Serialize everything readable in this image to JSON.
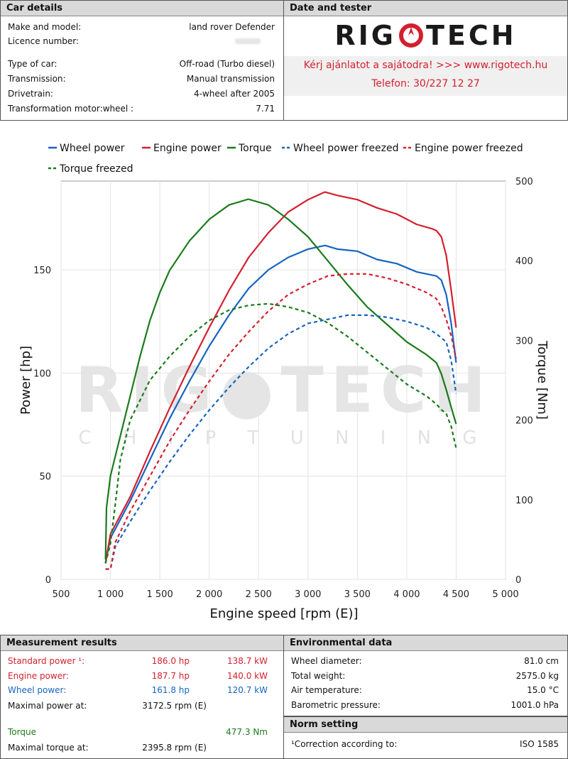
{
  "car_details": {
    "header": "Car details",
    "rows": [
      {
        "label": "Make and model:",
        "value": "land rover Defender"
      },
      {
        "label": "Licence number:",
        "value": ""
      },
      {
        "label": "Type of car:",
        "value": "Off-road (Turbo diesel)"
      },
      {
        "label": "Transmission:",
        "value": "Manual transmission"
      },
      {
        "label": "Drivetrain:",
        "value": "4-wheel after 2005"
      },
      {
        "label": "Transformation motor:wheel :",
        "value": "7.71"
      }
    ]
  },
  "date_tester": {
    "header": "Date and tester",
    "logo_left": "RIG",
    "logo_right": "TECH",
    "promo_line1": "Kérj ajánlatot a sajátodra!  >>>  www.rigotech.hu",
    "promo_line2": "Telefon: 30/227 12 27"
  },
  "watermark": {
    "left": "RIG",
    "right": "TECH",
    "sub": "C H I P T U N I N G"
  },
  "colors": {
    "wheel": "#1565c0",
    "engine": "#d3202e",
    "torque": "#1b7a1b"
  },
  "chart_data": {
    "type": "line",
    "xlabel": "Engine speed [rpm (E)]",
    "ylabel": "Power [hp]",
    "y2label": "Torque [Nm]",
    "xlim": [
      500,
      5000
    ],
    "ylim": [
      0,
      193
    ],
    "y2lim": [
      0,
      500
    ],
    "x_ticks": [
      500,
      1000,
      1500,
      2000,
      2500,
      3000,
      3500,
      4000,
      4500,
      5000
    ],
    "x_tick_labels": [
      "500",
      "1 000",
      "1 500",
      "2 000",
      "2 500",
      "3 000",
      "3 500",
      "4 000",
      "4 500",
      "5 000"
    ],
    "y_ticks": [
      0,
      50,
      100,
      150
    ],
    "y_tick_labels": [
      "0",
      "50",
      "100",
      "150"
    ],
    "y2_ticks": [
      0,
      100,
      200,
      300,
      400,
      500
    ],
    "y2_tick_labels": [
      "0",
      "100",
      "200",
      "300",
      "400",
      "500"
    ],
    "grid": true,
    "legend_position": "top",
    "series": [
      {
        "name": "Wheel power",
        "axis": "left",
        "color": "#1565c0",
        "dash": false,
        "points": [
          [
            950,
            8
          ],
          [
            1000,
            20
          ],
          [
            1200,
            38
          ],
          [
            1400,
            58
          ],
          [
            1600,
            78
          ],
          [
            1800,
            96
          ],
          [
            2000,
            113
          ],
          [
            2200,
            128
          ],
          [
            2400,
            141
          ],
          [
            2600,
            150
          ],
          [
            2800,
            156
          ],
          [
            3000,
            160
          ],
          [
            3172,
            161.8
          ],
          [
            3300,
            160
          ],
          [
            3500,
            159
          ],
          [
            3700,
            155
          ],
          [
            3900,
            153
          ],
          [
            4100,
            149
          ],
          [
            4200,
            148
          ],
          [
            4300,
            147
          ],
          [
            4350,
            145
          ],
          [
            4400,
            138
          ],
          [
            4450,
            124
          ],
          [
            4500,
            105
          ]
        ]
      },
      {
        "name": "Engine power",
        "axis": "left",
        "color": "#d3202e",
        "dash": false,
        "points": [
          [
            950,
            8
          ],
          [
            1000,
            22
          ],
          [
            1200,
            40
          ],
          [
            1400,
            62
          ],
          [
            1600,
            83
          ],
          [
            1800,
            103
          ],
          [
            2000,
            122
          ],
          [
            2200,
            140
          ],
          [
            2400,
            156
          ],
          [
            2600,
            168
          ],
          [
            2800,
            178
          ],
          [
            3000,
            184
          ],
          [
            3172,
            187.7
          ],
          [
            3300,
            186
          ],
          [
            3500,
            184
          ],
          [
            3700,
            180
          ],
          [
            3900,
            177
          ],
          [
            4100,
            172
          ],
          [
            4250,
            170
          ],
          [
            4300,
            169
          ],
          [
            4350,
            166
          ],
          [
            4400,
            157
          ],
          [
            4450,
            140
          ],
          [
            4500,
            122
          ]
        ]
      },
      {
        "name": "Torque",
        "axis": "right",
        "color": "#1b7a1b",
        "dash": false,
        "points": [
          [
            950,
            25
          ],
          [
            960,
            90
          ],
          [
            1000,
            130
          ],
          [
            1100,
            180
          ],
          [
            1200,
            230
          ],
          [
            1300,
            280
          ],
          [
            1400,
            325
          ],
          [
            1500,
            360
          ],
          [
            1600,
            388
          ],
          [
            1800,
            425
          ],
          [
            2000,
            452
          ],
          [
            2200,
            470
          ],
          [
            2396,
            477.3
          ],
          [
            2600,
            470
          ],
          [
            2800,
            452
          ],
          [
            3000,
            430
          ],
          [
            3200,
            400
          ],
          [
            3400,
            370
          ],
          [
            3600,
            342
          ],
          [
            3800,
            320
          ],
          [
            4000,
            298
          ],
          [
            4200,
            282
          ],
          [
            4300,
            272
          ],
          [
            4350,
            258
          ],
          [
            4400,
            238
          ],
          [
            4450,
            216
          ],
          [
            4500,
            195
          ]
        ]
      },
      {
        "name": "Wheel power freezed",
        "axis": "left",
        "color": "#1565c0",
        "dash": true,
        "points": [
          [
            950,
            5
          ],
          [
            1000,
            5
          ],
          [
            1050,
            16
          ],
          [
            1200,
            28
          ],
          [
            1400,
            43
          ],
          [
            1600,
            57
          ],
          [
            1800,
            70
          ],
          [
            2000,
            82
          ],
          [
            2200,
            93
          ],
          [
            2400,
            103
          ],
          [
            2600,
            112
          ],
          [
            2800,
            119
          ],
          [
            3000,
            124
          ],
          [
            3200,
            126
          ],
          [
            3400,
            128
          ],
          [
            3600,
            128
          ],
          [
            3800,
            127
          ],
          [
            4000,
            125
          ],
          [
            4200,
            122
          ],
          [
            4300,
            119
          ],
          [
            4350,
            117
          ],
          [
            4400,
            115
          ],
          [
            4450,
            106
          ],
          [
            4500,
            90
          ]
        ]
      },
      {
        "name": "Engine power freezed",
        "axis": "left",
        "color": "#d3202e",
        "dash": true,
        "points": [
          [
            950,
            5
          ],
          [
            1000,
            5
          ],
          [
            1050,
            18
          ],
          [
            1200,
            33
          ],
          [
            1400,
            50
          ],
          [
            1600,
            67
          ],
          [
            1800,
            82
          ],
          [
            2000,
            96
          ],
          [
            2200,
            109
          ],
          [
            2400,
            120
          ],
          [
            2600,
            130
          ],
          [
            2800,
            138
          ],
          [
            3000,
            143
          ],
          [
            3200,
            147
          ],
          [
            3400,
            148
          ],
          [
            3600,
            148
          ],
          [
            3800,
            146
          ],
          [
            4000,
            143
          ],
          [
            4200,
            139
          ],
          [
            4300,
            136
          ],
          [
            4350,
            132
          ],
          [
            4400,
            126
          ],
          [
            4450,
            118
          ],
          [
            4500,
            107
          ]
        ]
      },
      {
        "name": "Torque freezed",
        "axis": "right",
        "color": "#1b7a1b",
        "dash": true,
        "points": [
          [
            950,
            20
          ],
          [
            1000,
            45
          ],
          [
            1050,
            95
          ],
          [
            1100,
            150
          ],
          [
            1200,
            200
          ],
          [
            1400,
            250
          ],
          [
            1600,
            280
          ],
          [
            1800,
            305
          ],
          [
            2000,
            325
          ],
          [
            2200,
            338
          ],
          [
            2400,
            344
          ],
          [
            2600,
            346
          ],
          [
            2800,
            342
          ],
          [
            3000,
            335
          ],
          [
            3200,
            322
          ],
          [
            3400,
            305
          ],
          [
            3600,
            285
          ],
          [
            3800,
            265
          ],
          [
            4000,
            245
          ],
          [
            4200,
            230
          ],
          [
            4300,
            220
          ],
          [
            4350,
            213
          ],
          [
            4400,
            208
          ],
          [
            4450,
            192
          ],
          [
            4500,
            165
          ]
        ]
      }
    ]
  },
  "measurement": {
    "header": "Measurement results",
    "rows": [
      {
        "label": "Standard power ¹:",
        "v1": "186.0 hp",
        "v2": "138.7 kW",
        "cls": "red"
      },
      {
        "label": "Engine power:",
        "v1": "187.7 hp",
        "v2": "140.0 kW",
        "cls": "red"
      },
      {
        "label": "Wheel power:",
        "v1": "161.8 hp",
        "v2": "120.7 kW",
        "cls": "blue"
      },
      {
        "label": "Maximal power at:",
        "v1": "3172.5 rpm (E)",
        "v2": "",
        "cls": ""
      }
    ],
    "torque_label": "Torque",
    "torque_value": "477.3 Nm",
    "max_torque_label": "Maximal torque at:",
    "max_torque_value": "2395.8 rpm (E)"
  },
  "environment": {
    "header": "Environmental data",
    "rows": [
      {
        "label": "Wheel diameter:",
        "value": "81.0 cm"
      },
      {
        "label": "Total weight:",
        "value": "2575.0 kg"
      },
      {
        "label": "Air temperature:",
        "value": "15.0 °C"
      },
      {
        "label": "Barometric pressure:",
        "value": "1001.0 hPa"
      }
    ]
  },
  "norm": {
    "header": "Norm setting",
    "label": "¹Correction according to:",
    "value": "ISO 1585"
  }
}
